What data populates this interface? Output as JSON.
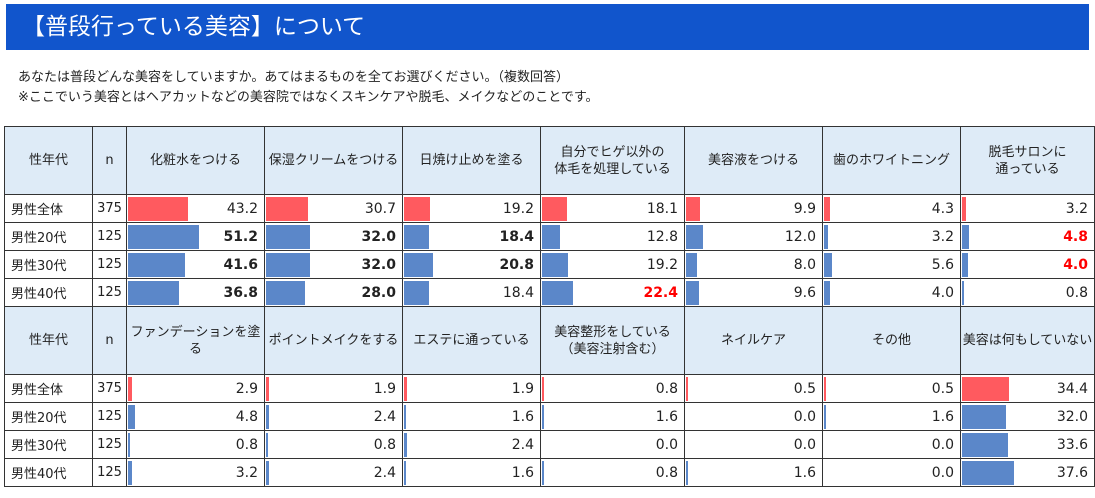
{
  "title": "【普段行っている美容】について",
  "question": "あなたは普段どんな美容をしていますか。あてはまるものを全てお選びください。（複数回答）",
  "note": "※ここでいう美容とはヘアカットなどの美容院ではなくスキンケアや脱毛、メイクなどのことです。",
  "colors": {
    "header_bg": "#1155cc",
    "header_cell": "#deebf7",
    "bar_total": "#ff5a5f",
    "bar_group": "#5b87c9",
    "highlight": "#ff0000"
  },
  "chart_data": [
    {
      "type": "table",
      "header_label": "性年代",
      "n_label": "n",
      "rows": [
        {
          "label": "男性全体",
          "n": "375"
        },
        {
          "label": "男性20代",
          "n": "125"
        },
        {
          "label": "男性30代",
          "n": "125"
        },
        {
          "label": "男性40代",
          "n": "125"
        }
      ],
      "columns": [
        {
          "label": [
            "化粧水をつける"
          ],
          "values": [
            "43.2",
            "51.2",
            "41.6",
            "36.8"
          ],
          "bold": [
            false,
            true,
            true,
            true
          ],
          "red": [
            false,
            false,
            false,
            false
          ]
        },
        {
          "label": [
            "保湿クリームをつける"
          ],
          "values": [
            "30.7",
            "32.0",
            "32.0",
            "28.0"
          ],
          "bold": [
            false,
            true,
            true,
            true
          ],
          "red": [
            false,
            false,
            false,
            false
          ]
        },
        {
          "label": [
            "日焼け止めを塗る"
          ],
          "values": [
            "19.2",
            "18.4",
            "20.8",
            "18.4"
          ],
          "bold": [
            false,
            true,
            true,
            false
          ],
          "red": [
            false,
            false,
            false,
            false
          ]
        },
        {
          "label": [
            "自分でヒゲ以外の",
            "体毛を処理している"
          ],
          "values": [
            "18.1",
            "12.8",
            "19.2",
            "22.4"
          ],
          "bold": [
            false,
            false,
            false,
            true
          ],
          "red": [
            false,
            false,
            false,
            true
          ]
        },
        {
          "label": [
            "美容液をつける"
          ],
          "values": [
            "9.9",
            "12.0",
            "8.0",
            "9.6"
          ],
          "bold": [
            false,
            false,
            false,
            false
          ],
          "red": [
            false,
            false,
            false,
            false
          ]
        },
        {
          "label": [
            "歯のホワイトニング"
          ],
          "values": [
            "4.3",
            "3.2",
            "5.6",
            "4.0"
          ],
          "bold": [
            false,
            false,
            false,
            false
          ],
          "red": [
            false,
            false,
            false,
            false
          ]
        },
        {
          "label": [
            "脱毛サロンに",
            "通っている"
          ],
          "values": [
            "3.2",
            "4.8",
            "4.0",
            "0.8"
          ],
          "bold": [
            false,
            true,
            true,
            false
          ],
          "red": [
            false,
            true,
            true,
            false
          ]
        }
      ]
    },
    {
      "type": "table",
      "header_label": "性年代",
      "n_label": "n",
      "rows": [
        {
          "label": "男性全体",
          "n": "375"
        },
        {
          "label": "男性20代",
          "n": "125"
        },
        {
          "label": "男性30代",
          "n": "125"
        },
        {
          "label": "男性40代",
          "n": "125"
        }
      ],
      "columns": [
        {
          "label": [
            "ファンデーションを塗る"
          ],
          "values": [
            "2.9",
            "4.8",
            "0.8",
            "3.2"
          ],
          "bold": [
            false,
            false,
            false,
            false
          ],
          "red": [
            false,
            false,
            false,
            false
          ]
        },
        {
          "label": [
            "ポイントメイクをする"
          ],
          "values": [
            "1.9",
            "2.4",
            "0.8",
            "2.4"
          ],
          "bold": [
            false,
            false,
            false,
            false
          ],
          "red": [
            false,
            false,
            false,
            false
          ]
        },
        {
          "label": [
            "エステに通っている"
          ],
          "values": [
            "1.9",
            "1.6",
            "2.4",
            "1.6"
          ],
          "bold": [
            false,
            false,
            false,
            false
          ],
          "red": [
            false,
            false,
            false,
            false
          ]
        },
        {
          "label": [
            "美容整形をしている",
            "（美容注射含む）"
          ],
          "values": [
            "0.8",
            "1.6",
            "0.0",
            "0.8"
          ],
          "bold": [
            false,
            false,
            false,
            false
          ],
          "red": [
            false,
            false,
            false,
            false
          ]
        },
        {
          "label": [
            "ネイルケア"
          ],
          "values": [
            "0.5",
            "0.0",
            "0.0",
            "1.6"
          ],
          "bold": [
            false,
            false,
            false,
            false
          ],
          "red": [
            false,
            false,
            false,
            false
          ]
        },
        {
          "label": [
            "その他"
          ],
          "values": [
            "0.5",
            "1.6",
            "0.0",
            "0.0"
          ],
          "bold": [
            false,
            false,
            false,
            false
          ],
          "red": [
            false,
            false,
            false,
            false
          ]
        },
        {
          "label": [
            "美容は何もしていない"
          ],
          "values": [
            "34.4",
            "32.0",
            "33.6",
            "37.6"
          ],
          "bold": [
            false,
            false,
            false,
            false
          ],
          "red": [
            false,
            false,
            false,
            false
          ]
        }
      ]
    }
  ]
}
